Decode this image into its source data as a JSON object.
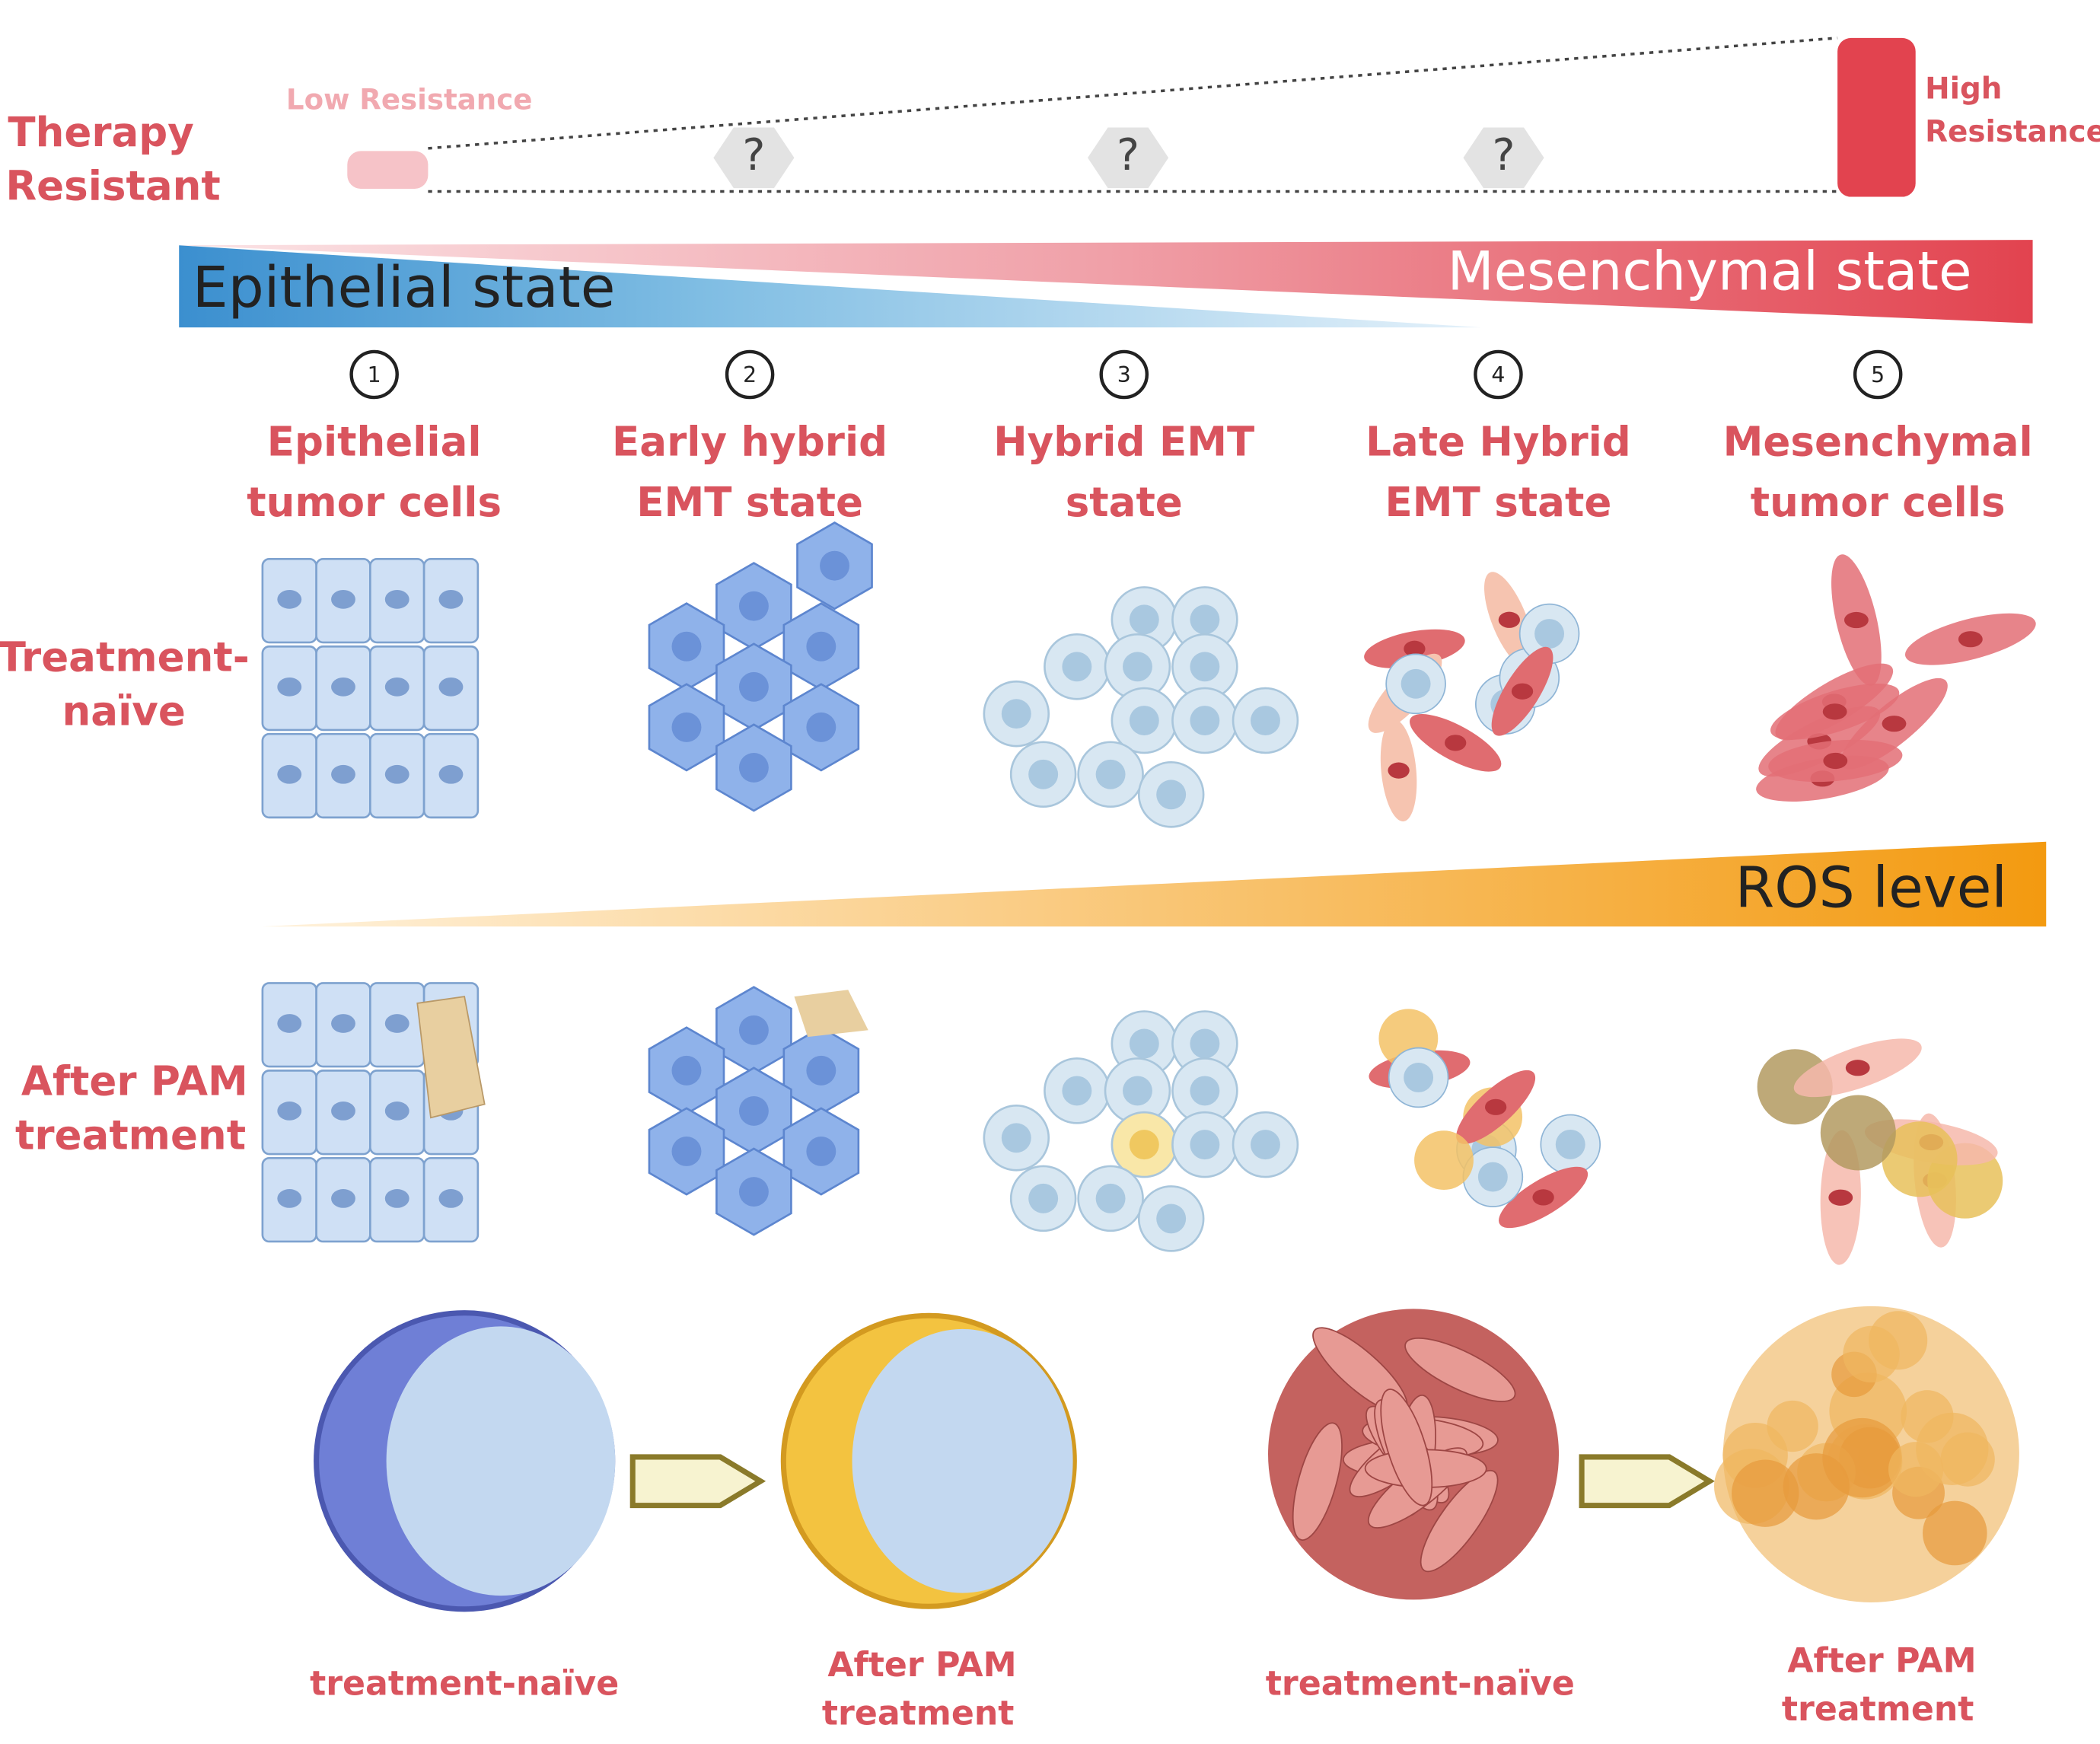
{
  "resistance": {
    "label": [
      "Therapy",
      "Resistant"
    ],
    "low": "Low Resistance",
    "high": [
      "High",
      "Resistance"
    ],
    "unknown": [
      "?",
      "?",
      "?"
    ]
  },
  "gradient": {
    "epithelial": "Epithelial state",
    "mesenchymal": "Mesenchymal state"
  },
  "stages": [
    {
      "number": "1",
      "title": [
        "Epithelial",
        "tumor cells"
      ]
    },
    {
      "number": "2",
      "title": [
        "Early hybrid",
        "EMT state"
      ]
    },
    {
      "number": "3",
      "title": [
        "Hybrid EMT",
        "state"
      ]
    },
    {
      "number": "4",
      "title": [
        "Late Hybrid",
        "EMT state"
      ]
    },
    {
      "number": "5",
      "title": [
        "Mesenchymal",
        "tumor cells"
      ]
    }
  ],
  "rows": [
    [
      "Treatment-",
      "naïve"
    ],
    [
      "After PAM",
      "treatment"
    ]
  ],
  "ros": "ROS level",
  "spheroids": [
    [
      "treatment-naïve"
    ],
    [
      "After PAM",
      "treatment"
    ],
    [
      "treatment-naïve"
    ],
    [
      "After PAM",
      "treatment"
    ]
  ]
}
